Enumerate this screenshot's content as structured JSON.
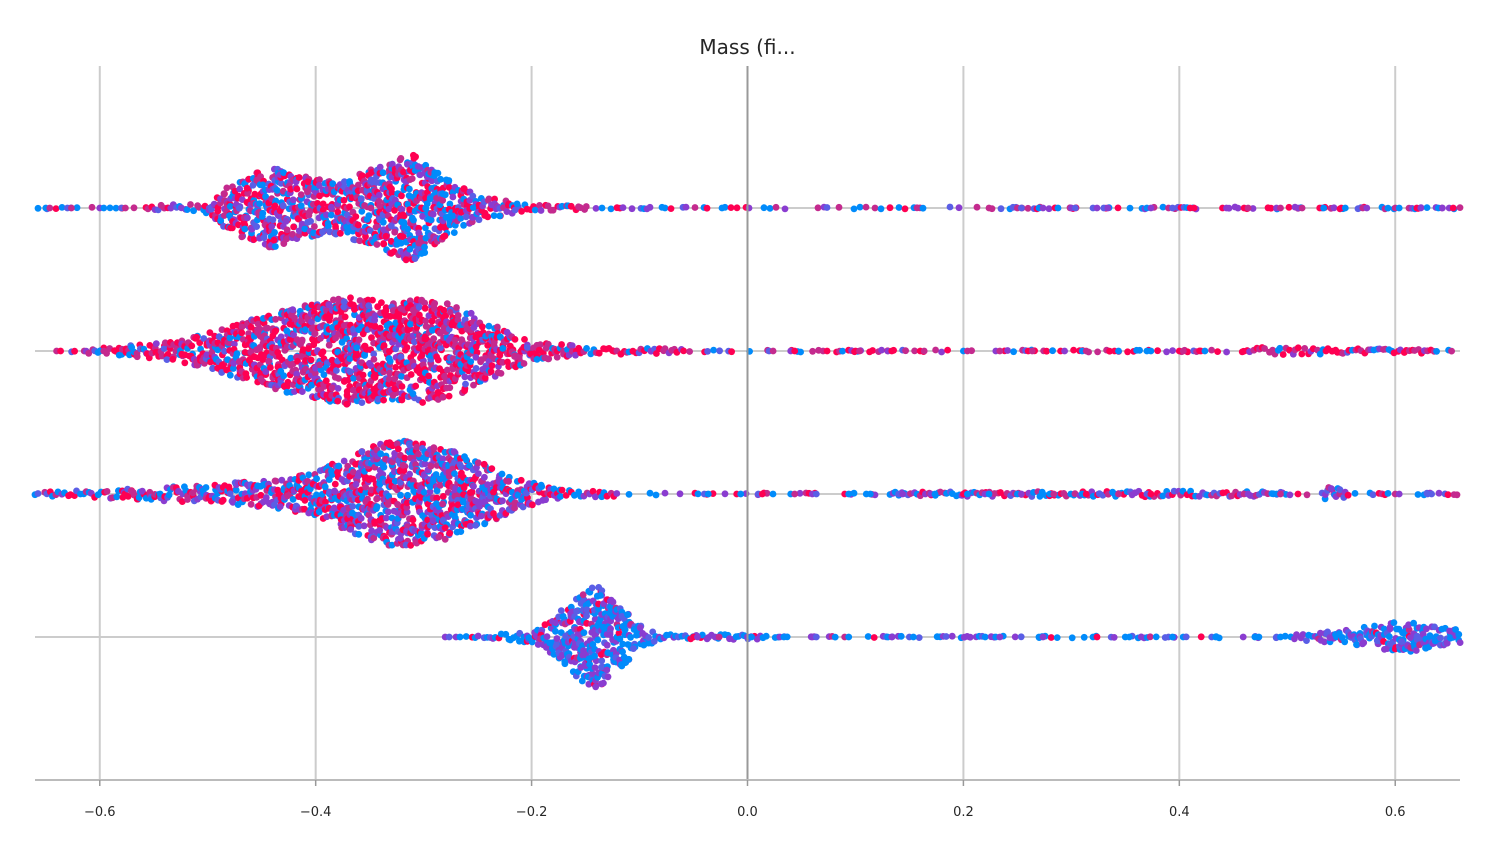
{
  "chart_data": {
    "type": "scatter",
    "subtype": "beeswarm",
    "title": "Mass (fi...",
    "xlabel": "",
    "ylabel": "",
    "xlim": [
      -0.66,
      0.66
    ],
    "x_ticks": [
      {
        "value": -0.6,
        "label": "−0.6"
      },
      {
        "value": -0.4,
        "label": "−0.4"
      },
      {
        "value": -0.2,
        "label": "−0.2"
      },
      {
        "value": 0.0,
        "label": "0.0"
      },
      {
        "value": 0.2,
        "label": "0.2"
      },
      {
        "value": 0.4,
        "label": "0.4"
      },
      {
        "value": 0.6,
        "label": "0.6"
      }
    ],
    "grid": true,
    "zero_line": 0.0,
    "colors": {
      "low": "#008bfb",
      "high": "#ff0052",
      "mid": "#8a3cd0",
      "grid": "#cccccc",
      "axis": "#bbbbbb"
    },
    "rows": [
      {
        "index": 0,
        "color_mix_high": 0.48,
        "min_value": -0.66,
        "max_value": 0.66,
        "density_bins": [
          {
            "x": -0.66,
            "half_height": 1
          },
          {
            "x": -0.56,
            "half_height": 2
          },
          {
            "x": -0.5,
            "half_height": 5
          },
          {
            "x": -0.48,
            "half_height": 24
          },
          {
            "x": -0.44,
            "half_height": 42
          },
          {
            "x": -0.42,
            "half_height": 33
          },
          {
            "x": -0.38,
            "half_height": 26
          },
          {
            "x": -0.33,
            "half_height": 46
          },
          {
            "x": -0.31,
            "half_height": 54
          },
          {
            "x": -0.28,
            "half_height": 30
          },
          {
            "x": -0.25,
            "half_height": 12
          },
          {
            "x": -0.2,
            "half_height": 3
          },
          {
            "x": -0.1,
            "half_height": 1.5
          },
          {
            "x": 0.22,
            "half_height": 1
          },
          {
            "x": 0.66,
            "half_height": 1
          }
        ],
        "sparse_points": [
          -0.65,
          -0.63,
          -0.6,
          -0.58,
          0.25,
          0.27,
          0.3,
          0.32,
          0.33,
          0.37,
          0.39,
          0.41,
          0.44,
          0.46,
          0.49,
          0.51,
          0.53,
          0.55,
          0.57,
          0.6,
          0.62,
          0.64,
          0.65
        ]
      },
      {
        "index": 1,
        "color_mix_high": 0.7,
        "min_value": -0.64,
        "max_value": 0.66,
        "density_bins": [
          {
            "x": -0.64,
            "half_height": 1
          },
          {
            "x": -0.6,
            "half_height": 3
          },
          {
            "x": -0.55,
            "half_height": 8
          },
          {
            "x": -0.52,
            "half_height": 12
          },
          {
            "x": -0.48,
            "half_height": 24
          },
          {
            "x": -0.44,
            "half_height": 38
          },
          {
            "x": -0.4,
            "half_height": 48
          },
          {
            "x": -0.37,
            "half_height": 54
          },
          {
            "x": -0.33,
            "half_height": 50
          },
          {
            "x": -0.3,
            "half_height": 52
          },
          {
            "x": -0.27,
            "half_height": 46
          },
          {
            "x": -0.24,
            "half_height": 28
          },
          {
            "x": -0.2,
            "half_height": 10
          },
          {
            "x": -0.15,
            "half_height": 4
          },
          {
            "x": -0.05,
            "half_height": 2
          },
          {
            "x": 0.1,
            "half_height": 1.5
          },
          {
            "x": 0.45,
            "half_height": 1.5
          },
          {
            "x": 0.47,
            "half_height": 4
          },
          {
            "x": 0.55,
            "half_height": 3
          },
          {
            "x": 0.66,
            "half_height": 2
          }
        ],
        "sparse_points": [
          -0.64,
          -0.6,
          0.02,
          0.04,
          0.07,
          0.1,
          0.13,
          0.16,
          0.2,
          0.23,
          0.26,
          0.29,
          0.31,
          0.34,
          0.37,
          0.4,
          0.42
        ]
      },
      {
        "index": 2,
        "color_mix_high": 0.42,
        "min_value": -0.66,
        "max_value": 0.66,
        "density_bins": [
          {
            "x": -0.66,
            "half_height": 2
          },
          {
            "x": -0.6,
            "half_height": 4
          },
          {
            "x": -0.52,
            "half_height": 8
          },
          {
            "x": -0.44,
            "half_height": 14
          },
          {
            "x": -0.4,
            "half_height": 22
          },
          {
            "x": -0.37,
            "half_height": 38
          },
          {
            "x": -0.34,
            "half_height": 50
          },
          {
            "x": -0.32,
            "half_height": 54
          },
          {
            "x": -0.28,
            "half_height": 46
          },
          {
            "x": -0.25,
            "half_height": 34
          },
          {
            "x": -0.21,
            "half_height": 14
          },
          {
            "x": -0.17,
            "half_height": 4
          },
          {
            "x": -0.1,
            "half_height": 1.5
          },
          {
            "x": 0.4,
            "half_height": 3
          },
          {
            "x": 0.53,
            "half_height": 2
          },
          {
            "x": 0.54,
            "half_height": 8
          },
          {
            "x": 0.56,
            "half_height": 2
          },
          {
            "x": 0.66,
            "half_height": 1.5
          }
        ],
        "sparse_points": [
          -0.04,
          -0.01,
          0.01,
          0.04,
          0.06,
          0.09,
          0.11,
          0.14,
          0.17,
          0.2,
          0.22,
          0.25,
          0.28,
          0.31,
          0.34,
          0.37,
          0.46,
          0.49,
          0.6,
          0.63
        ]
      },
      {
        "index": 3,
        "color_mix_high": 0.08,
        "min_value": -0.28,
        "max_value": 0.66,
        "density_bins": [
          {
            "x": -0.28,
            "half_height": 1
          },
          {
            "x": -0.24,
            "half_height": 2
          },
          {
            "x": -0.2,
            "half_height": 6
          },
          {
            "x": -0.18,
            "half_height": 18
          },
          {
            "x": -0.16,
            "half_height": 38
          },
          {
            "x": -0.14,
            "half_height": 54
          },
          {
            "x": -0.12,
            "half_height": 34
          },
          {
            "x": -0.1,
            "half_height": 12
          },
          {
            "x": -0.08,
            "half_height": 3
          },
          {
            "x": 0.1,
            "half_height": 1.5
          },
          {
            "x": 0.5,
            "half_height": 2
          },
          {
            "x": 0.56,
            "half_height": 8
          },
          {
            "x": 0.6,
            "half_height": 16
          },
          {
            "x": 0.62,
            "half_height": 14
          },
          {
            "x": 0.66,
            "half_height": 8
          }
        ],
        "sparse_points": [
          -0.28,
          -0.27,
          -0.05,
          -0.03,
          0.0,
          0.03,
          0.06,
          0.09,
          0.13,
          0.15,
          0.23,
          0.27,
          0.32,
          0.35,
          0.39,
          0.43,
          0.47,
          0.49
        ]
      }
    ]
  }
}
